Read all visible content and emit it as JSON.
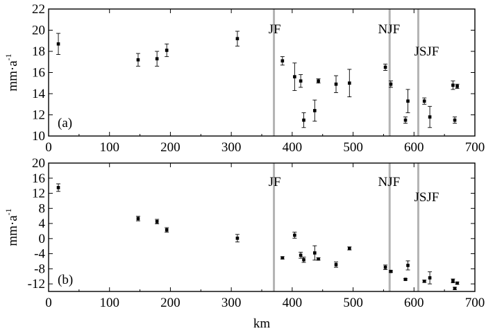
{
  "chart_data": [
    {
      "type": "scatter",
      "panel": "(a)",
      "ylabel": "mm·a",
      "ylabel_sup": "-1",
      "xlim": [
        0,
        700
      ],
      "ylim": [
        10,
        22
      ],
      "x_ticks": [
        "0",
        "100",
        "200",
        "300",
        "400",
        "500",
        "600",
        "700"
      ],
      "y_ticks": [
        "10",
        "12",
        "14",
        "16",
        "18",
        "20",
        "22"
      ],
      "fault_lines": [
        {
          "label": "JF",
          "x": 370
        },
        {
          "label": "NJF",
          "x": 560
        },
        {
          "label": "JSJF",
          "x": 607
        }
      ],
      "points": [
        {
          "x": 16,
          "y": 18.7,
          "err": 1.0
        },
        {
          "x": 147,
          "y": 17.2,
          "err": 0.6
        },
        {
          "x": 178,
          "y": 17.3,
          "err": 0.7
        },
        {
          "x": 194,
          "y": 18.1,
          "err": 0.6
        },
        {
          "x": 310,
          "y": 19.2,
          "err": 0.7
        },
        {
          "x": 384,
          "y": 17.1,
          "err": 0.4
        },
        {
          "x": 404,
          "y": 15.6,
          "err": 1.3
        },
        {
          "x": 414,
          "y": 15.2,
          "err": 0.6
        },
        {
          "x": 419,
          "y": 11.5,
          "err": 0.7
        },
        {
          "x": 437,
          "y": 12.4,
          "err": 1.0
        },
        {
          "x": 443,
          "y": 15.2,
          "err": 0.2
        },
        {
          "x": 472,
          "y": 14.9,
          "err": 0.8
        },
        {
          "x": 494,
          "y": 15.0,
          "err": 1.3
        },
        {
          "x": 553,
          "y": 16.5,
          "err": 0.3
        },
        {
          "x": 562,
          "y": 14.9,
          "err": 0.3
        },
        {
          "x": 586,
          "y": 11.5,
          "err": 0.3
        },
        {
          "x": 590,
          "y": 13.3,
          "err": 1.1
        },
        {
          "x": 617,
          "y": 13.3,
          "err": 0.3
        },
        {
          "x": 626,
          "y": 11.8,
          "err": 1.0
        },
        {
          "x": 664,
          "y": 14.8,
          "err": 0.4
        },
        {
          "x": 667,
          "y": 11.5,
          "err": 0.3
        },
        {
          "x": 671,
          "y": 14.7,
          "err": 0.2
        }
      ]
    },
    {
      "type": "scatter",
      "panel": "(b)",
      "xlabel": "km",
      "ylabel": "mm·a",
      "ylabel_sup": "-1",
      "xlim": [
        0,
        700
      ],
      "ylim": [
        -14,
        20
      ],
      "x_ticks": [
        "0",
        "100",
        "200",
        "300",
        "400",
        "500",
        "600",
        "700"
      ],
      "y_ticks": [
        "-12",
        "-8",
        "-4",
        "0",
        "4",
        "8",
        "12",
        "16",
        "20"
      ],
      "fault_lines": [
        {
          "label": "JF",
          "x": 370
        },
        {
          "label": "NJF",
          "x": 560
        },
        {
          "label": "JSJF",
          "x": 607
        }
      ],
      "points": [
        {
          "x": 16,
          "y": 13.5,
          "err": 1.0
        },
        {
          "x": 147,
          "y": 5.3,
          "err": 0.6
        },
        {
          "x": 178,
          "y": 4.5,
          "err": 0.6
        },
        {
          "x": 194,
          "y": 2.3,
          "err": 0.6
        },
        {
          "x": 310,
          "y": 0.1,
          "err": 1.0
        },
        {
          "x": 384,
          "y": -5.1,
          "err": 0.3
        },
        {
          "x": 404,
          "y": 0.9,
          "err": 0.8
        },
        {
          "x": 414,
          "y": -4.4,
          "err": 0.8
        },
        {
          "x": 419,
          "y": -5.6,
          "err": 0.7
        },
        {
          "x": 437,
          "y": -3.8,
          "err": 1.9
        },
        {
          "x": 443,
          "y": -5.4,
          "err": 0.3
        },
        {
          "x": 472,
          "y": -6.9,
          "err": 0.7
        },
        {
          "x": 494,
          "y": -2.6,
          "err": 0.4
        },
        {
          "x": 553,
          "y": -7.6,
          "err": 0.6
        },
        {
          "x": 562,
          "y": -8.7,
          "err": 0.2
        },
        {
          "x": 586,
          "y": -10.8,
          "err": 0.2
        },
        {
          "x": 590,
          "y": -7.1,
          "err": 1.2
        },
        {
          "x": 617,
          "y": -11.3,
          "err": 0.3
        },
        {
          "x": 626,
          "y": -10.4,
          "err": 1.6
        },
        {
          "x": 664,
          "y": -11.2,
          "err": 0.5
        },
        {
          "x": 667,
          "y": -13.2,
          "err": 0.3
        },
        {
          "x": 671,
          "y": -11.8,
          "err": 0.3
        }
      ]
    }
  ]
}
